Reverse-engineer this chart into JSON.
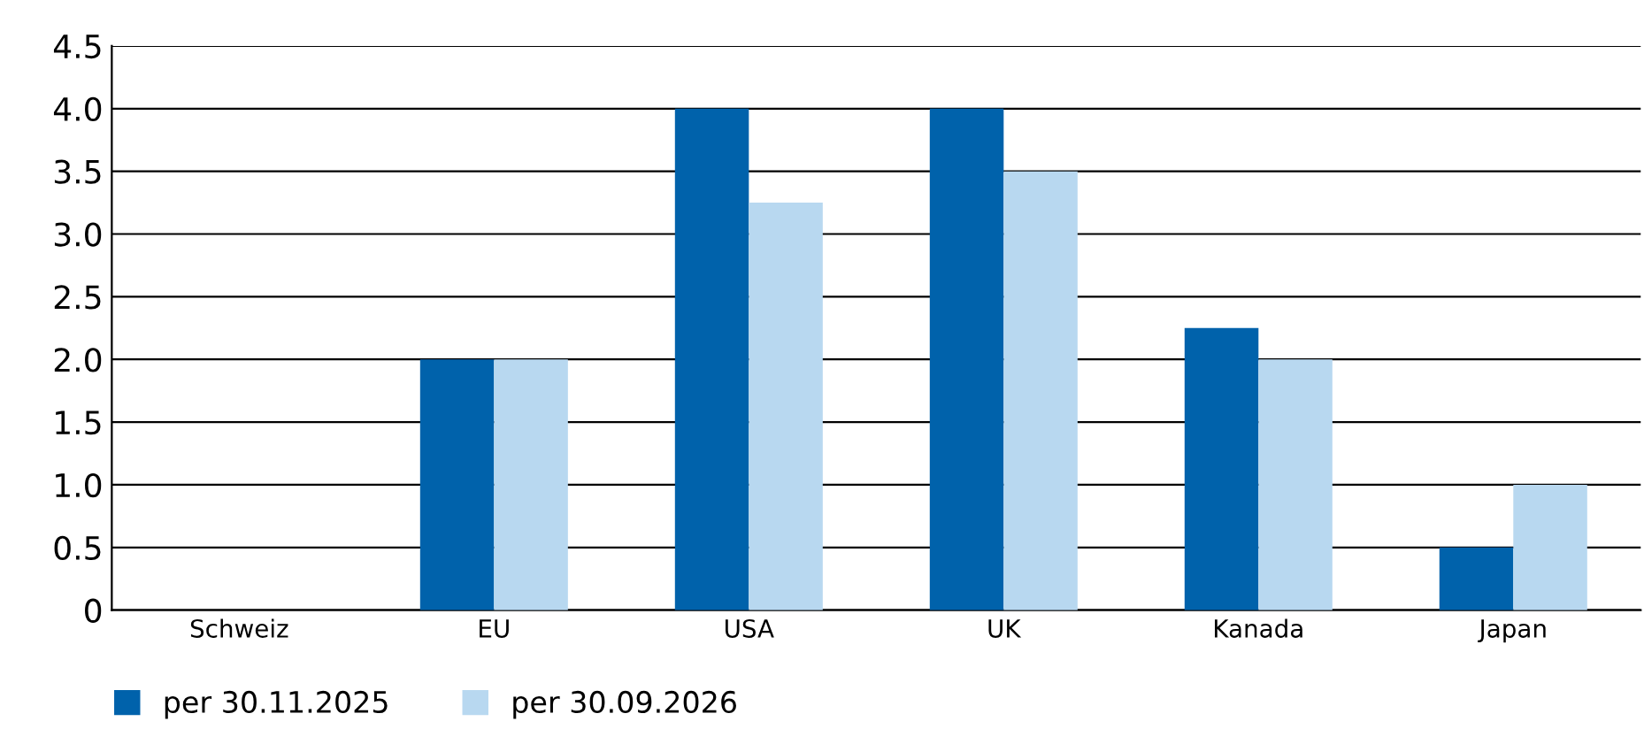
{
  "chart_data": {
    "type": "bar",
    "categories": [
      "Schweiz",
      "EU",
      "USA",
      "UK",
      "Kanada",
      "Japan"
    ],
    "series": [
      {
        "name": "per 30.11.2025",
        "color": "#0062ab",
        "values": [
          0,
          2,
          4,
          4,
          2.25,
          0.5
        ]
      },
      {
        "name": "per 30.09.2026",
        "color": "#b8d8f0",
        "values": [
          0,
          2,
          3.25,
          3.5,
          2,
          1
        ]
      }
    ],
    "ylim": [
      0,
      4.5
    ],
    "yticks": [
      0,
      {
        "value": 0.5,
        "label": "0.5"
      },
      {
        "value": 1,
        "label": "1.0"
      },
      {
        "value": 1.5,
        "label": "1.5"
      },
      {
        "value": 2,
        "label": "2.0"
      },
      {
        "value": 2.5,
        "label": "2.5"
      },
      {
        "value": 3,
        "label": "3.0"
      },
      {
        "value": 3.5,
        "label": "3.5"
      },
      {
        "value": 4,
        "label": "4.0"
      },
      {
        "value": 4.5,
        "label": "4.5"
      }
    ],
    "grid": "y",
    "legend": "bottom left"
  }
}
